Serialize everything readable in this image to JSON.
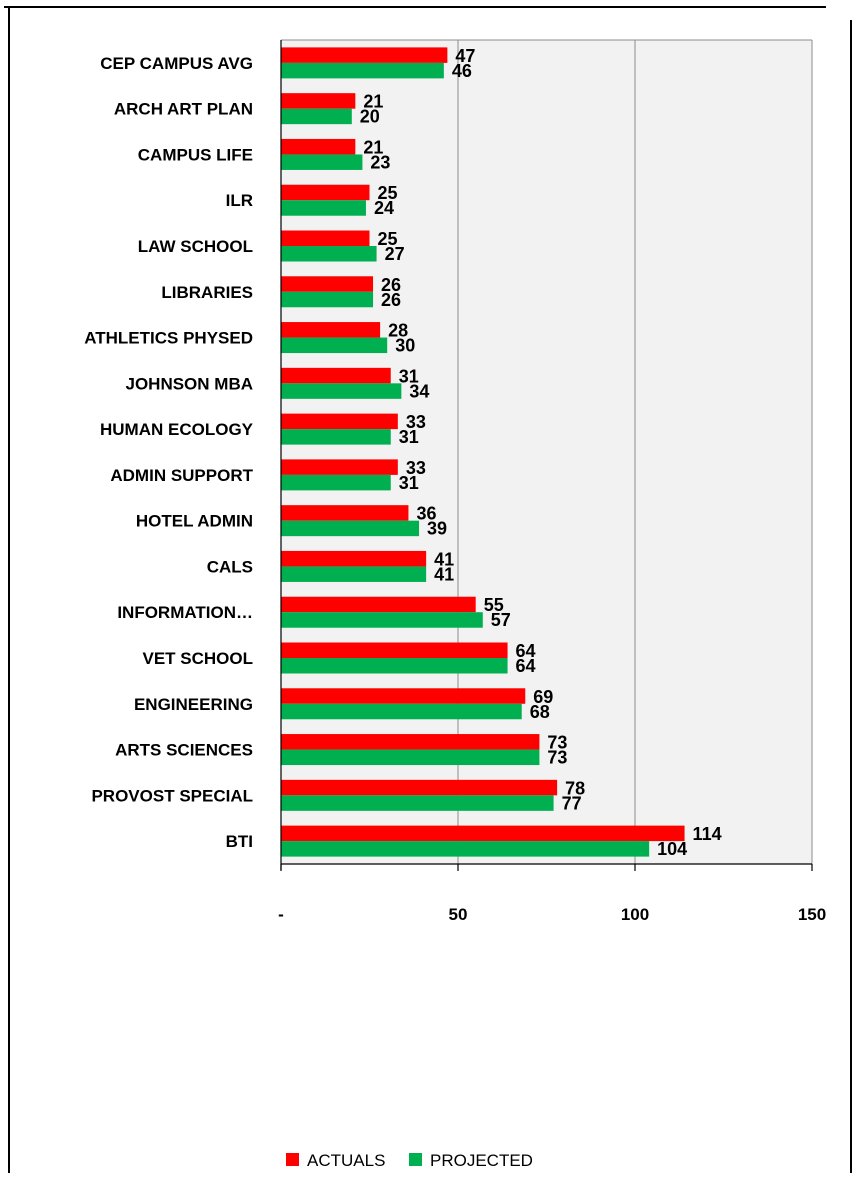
{
  "chart_data": {
    "type": "bar",
    "orientation": "horizontal",
    "categories": [
      "CEP CAMPUS AVG",
      "ARCH ART PLAN",
      "CAMPUS LIFE",
      "ILR",
      "LAW SCHOOL",
      "LIBRARIES",
      "ATHLETICS PHYSED",
      "JOHNSON MBA",
      "HUMAN ECOLOGY",
      "ADMIN SUPPORT",
      "HOTEL ADMIN",
      "CALS",
      "INFORMATION…",
      "VET SCHOOL",
      "ENGINEERING",
      "ARTS SCIENCES",
      "PROVOST SPECIAL",
      "BTI"
    ],
    "series": [
      {
        "name": "ACTUALS",
        "color": "#ff0000",
        "values": [
          47,
          21,
          21,
          25,
          25,
          26,
          28,
          31,
          33,
          33,
          36,
          41,
          55,
          64,
          69,
          73,
          78,
          114
        ]
      },
      {
        "name": "PROJECTED",
        "color": "#00b050",
        "values": [
          46,
          20,
          23,
          24,
          27,
          26,
          30,
          34,
          31,
          31,
          39,
          41,
          57,
          64,
          68,
          73,
          77,
          104
        ]
      }
    ],
    "xlim": [
      0,
      150
    ],
    "x_ticks": [
      0,
      50,
      100,
      150
    ],
    "x_tick_labels": [
      "-",
      "50",
      "100",
      "150"
    ],
    "grid": true,
    "legend_position": "bottom",
    "data_labels": true
  }
}
